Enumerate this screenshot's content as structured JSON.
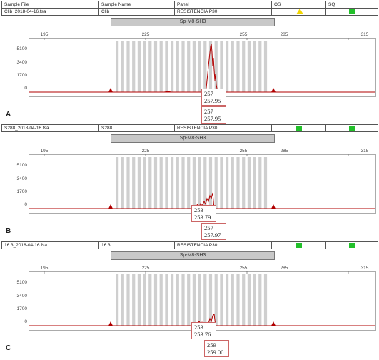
{
  "columns": {
    "sample_file": "Sample File",
    "sample_name": "Sample Name",
    "panel": "Panel",
    "os": "OS",
    "sq": "SQ"
  },
  "panels": [
    {
      "letter": "A",
      "file": "Clib_2018-04-16.fsa",
      "name": "Clib",
      "panel": "RESISTENCIA P30",
      "marker": "Sp-M8-SH3",
      "os_status": "warning",
      "sq_status": "pass",
      "x_ticks": [
        "195",
        "225",
        "255",
        "285",
        "315"
      ],
      "y_ticks": [
        "5100",
        "3400",
        "1700",
        "0"
      ],
      "calls": [
        {
          "allele": "257",
          "size": "257.95"
        },
        {
          "allele": "257",
          "size": "257.95"
        }
      ]
    },
    {
      "letter": "B",
      "file": "S288_2018-04-16.fsa",
      "name": "S288",
      "panel": "RESISTENCIA P30",
      "marker": "Sp-M8-SH3",
      "os_status": "pass",
      "sq_status": "pass",
      "x_ticks": [
        "195",
        "225",
        "255",
        "285",
        "315"
      ],
      "y_ticks": [
        "5100",
        "3400",
        "1700",
        "0"
      ],
      "calls": [
        {
          "allele": "253",
          "size": "253.79"
        },
        {
          "allele": "257",
          "size": "257.97"
        }
      ]
    },
    {
      "letter": "C",
      "file": "16.3_2018-04-16.fsa",
      "name": "16.3",
      "panel": "RESISTENCIA P30",
      "marker": "Sp-M8-SH3",
      "os_status": "pass",
      "sq_status": "pass",
      "x_ticks": [
        "195",
        "225",
        "255",
        "285",
        "315"
      ],
      "y_ticks": [
        "5100",
        "3400",
        "1700",
        "0"
      ],
      "calls": [
        {
          "allele": "253",
          "size": "253.76"
        },
        {
          "allele": "259",
          "size": "259.00"
        }
      ]
    }
  ],
  "colors": {
    "trace": "#b00000",
    "bin": "#cfcfcf",
    "green": "#22c02a",
    "yellow": "#f2d600"
  }
}
